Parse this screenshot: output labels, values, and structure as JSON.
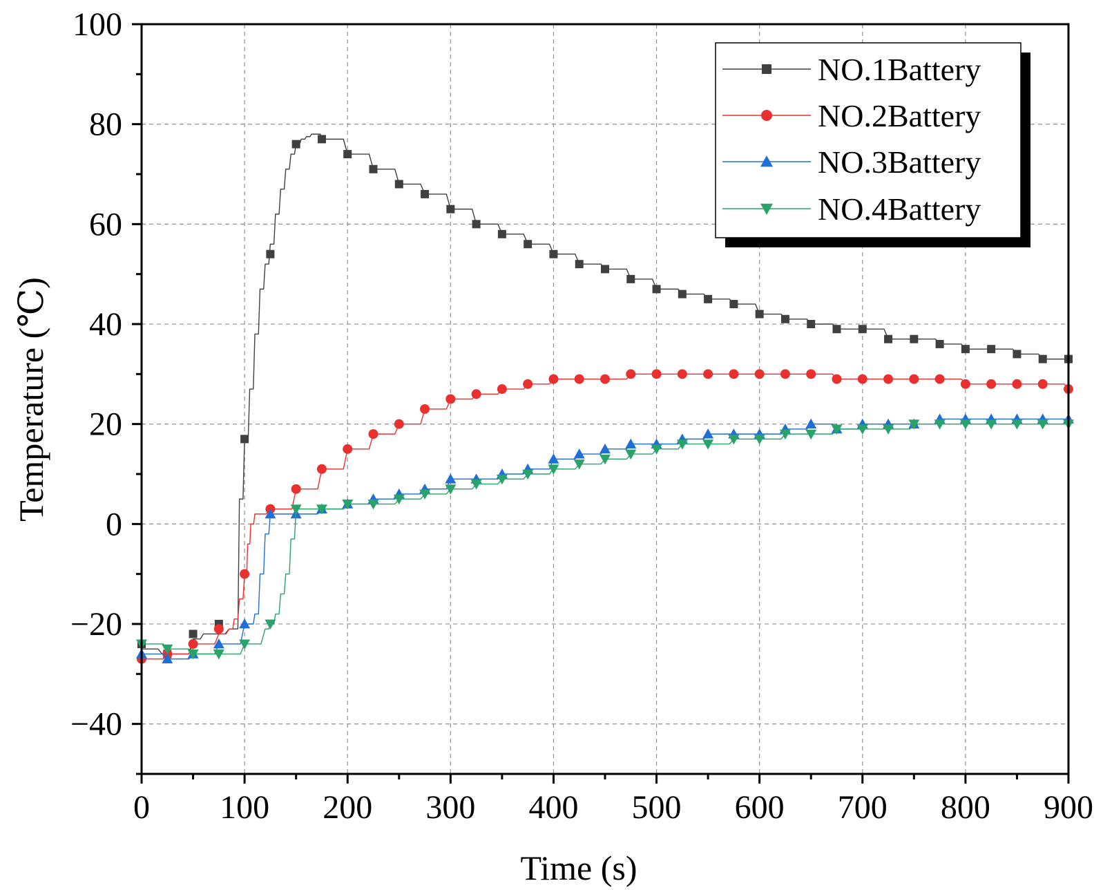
{
  "chart_data": {
    "type": "line",
    "title": "",
    "xlabel": "Time (s)",
    "ylabel": "Temperature (℃)",
    "xlim": [
      0,
      900
    ],
    "ylim": [
      -50,
      100
    ],
    "xticks": [
      0,
      100,
      200,
      300,
      400,
      500,
      600,
      700,
      800,
      900
    ],
    "yticks": [
      -40,
      -20,
      0,
      20,
      40,
      60,
      80,
      100
    ],
    "xtick_labels": [
      "0",
      "100",
      "200",
      "300",
      "400",
      "500",
      "600",
      "700",
      "800",
      "900"
    ],
    "ytick_labels": [
      "−40",
      "−20",
      "0",
      "20",
      "40",
      "60",
      "80",
      "100"
    ],
    "grid": true,
    "legend_position": "top-right",
    "x": [
      0,
      25,
      50,
      75,
      100,
      125,
      150,
      175,
      200,
      225,
      250,
      275,
      300,
      325,
      350,
      375,
      400,
      425,
      450,
      475,
      500,
      525,
      550,
      575,
      600,
      625,
      650,
      675,
      700,
      725,
      750,
      775,
      800,
      825,
      850,
      875,
      900
    ],
    "series": [
      {
        "name": "NO.1Battery",
        "color": "#404040",
        "marker": "square",
        "values": [
          -24,
          -26,
          -22,
          -20,
          17,
          54,
          76,
          77,
          74,
          71,
          68,
          66,
          63,
          60,
          58,
          56,
          54,
          52,
          51,
          49,
          47,
          46,
          45,
          44,
          42,
          41,
          40,
          39,
          39,
          37,
          37,
          36,
          35,
          35,
          34,
          33,
          33
        ],
        "line_x": [
          0,
          20,
          50,
          60,
          85,
          90,
          95,
          100,
          105,
          110,
          115,
          120,
          125,
          130,
          135,
          140,
          145,
          150,
          155,
          160,
          165,
          170,
          175,
          200,
          225,
          250,
          275,
          300,
          325,
          350,
          375,
          400,
          425,
          450,
          475,
          500,
          525,
          550,
          575,
          600,
          625,
          650,
          675,
          700,
          725,
          750,
          775,
          800,
          825,
          850,
          875,
          900
        ],
        "line_y": [
          -25,
          -26,
          -23,
          -22,
          -21,
          -21,
          5,
          17,
          27,
          38,
          47,
          52,
          56,
          62,
          67,
          71,
          74,
          76,
          77,
          77.5,
          78,
          78,
          77,
          74,
          71,
          68,
          66,
          63,
          60,
          58,
          56,
          54,
          52,
          51,
          49,
          47,
          46,
          45,
          44,
          42,
          41,
          40,
          39,
          39,
          37,
          37,
          36,
          35,
          35,
          34,
          33,
          33
        ]
      },
      {
        "name": "NO.2Battery",
        "color": "#e8302f",
        "marker": "circle",
        "values": [
          -27,
          -26,
          -24,
          -21,
          -10,
          3,
          7,
          11,
          15,
          18,
          20,
          23,
          25,
          26,
          27,
          28,
          29,
          29,
          29,
          30,
          30,
          30,
          30,
          30,
          30,
          30,
          30,
          29,
          29,
          29,
          29,
          29,
          28,
          28,
          28,
          28,
          27
        ],
        "line_x": [
          0,
          25,
          50,
          75,
          85,
          90,
          95,
          100,
          103,
          106,
          110,
          125,
          150,
          175,
          200,
          225,
          250,
          275,
          300,
          325,
          350,
          375,
          400,
          425,
          450,
          475,
          500,
          525,
          550,
          575,
          600,
          625,
          650,
          675,
          700,
          725,
          750,
          775,
          800,
          825,
          850,
          875,
          900
        ],
        "line_y": [
          -27,
          -26,
          -24,
          -22,
          -21,
          -19,
          -15,
          -10,
          -4,
          0,
          2,
          3,
          7,
          11,
          15,
          18,
          20,
          23,
          25,
          26,
          27,
          28,
          29,
          29,
          29,
          30,
          30,
          30,
          30,
          30,
          30,
          30,
          30,
          29,
          29,
          29,
          29,
          29,
          28,
          28,
          28,
          28,
          27
        ]
      },
      {
        "name": "NO.3Battery",
        "color": "#1f6fd6",
        "marker": "triangle-up",
        "values": [
          -26,
          -27,
          -26,
          -24,
          -20,
          2,
          2,
          3,
          4,
          5,
          6,
          7,
          9,
          9,
          10,
          11,
          13,
          14,
          15,
          16,
          16,
          17,
          18,
          18,
          18,
          19,
          20,
          19,
          20,
          20,
          20,
          21,
          21,
          21,
          21,
          21,
          21
        ],
        "line_x": [
          0,
          25,
          50,
          75,
          100,
          105,
          110,
          115,
          120,
          125,
          150,
          175,
          200,
          225,
          250,
          275,
          300,
          325,
          350,
          375,
          400,
          425,
          450,
          475,
          500,
          525,
          550,
          575,
          600,
          625,
          650,
          675,
          700,
          725,
          750,
          775,
          800,
          825,
          850,
          875,
          900
        ],
        "line_y": [
          -26,
          -27,
          -26,
          -24,
          -20,
          -20,
          -18,
          -10,
          -2,
          2,
          2,
          3,
          4,
          5,
          6,
          7,
          9,
          9,
          10,
          11,
          13,
          14,
          15,
          16,
          16,
          17,
          18,
          18,
          18,
          19,
          20,
          19,
          20,
          20,
          20,
          21,
          21,
          21,
          21,
          21,
          21
        ]
      },
      {
        "name": "NO.4Battery",
        "color": "#2aa36a",
        "marker": "triangle-down",
        "values": [
          -24,
          -25,
          -26,
          -26,
          -24,
          -20,
          3,
          3,
          4,
          4,
          5,
          6,
          7,
          8,
          9,
          10,
          11,
          12,
          13,
          14,
          15,
          16,
          16,
          17,
          17,
          18,
          18,
          19,
          19,
          19,
          20,
          20,
          20,
          20,
          20,
          20,
          20
        ],
        "line_x": [
          0,
          25,
          50,
          75,
          100,
          120,
          125,
          130,
          135,
          140,
          145,
          150,
          175,
          200,
          225,
          250,
          275,
          300,
          325,
          350,
          375,
          400,
          425,
          450,
          475,
          500,
          525,
          550,
          575,
          600,
          625,
          650,
          675,
          700,
          725,
          750,
          775,
          800,
          825,
          850,
          875,
          900
        ],
        "line_y": [
          -24,
          -25,
          -26,
          -26,
          -24,
          -21,
          -20,
          -18,
          -14,
          -10,
          -3,
          3,
          3,
          4,
          4,
          5,
          6,
          7,
          8,
          9,
          10,
          11,
          12,
          13,
          14,
          15,
          16,
          16,
          17,
          17,
          18,
          18,
          19,
          19,
          19,
          20,
          20,
          20,
          20,
          20,
          20,
          20
        ]
      }
    ]
  }
}
